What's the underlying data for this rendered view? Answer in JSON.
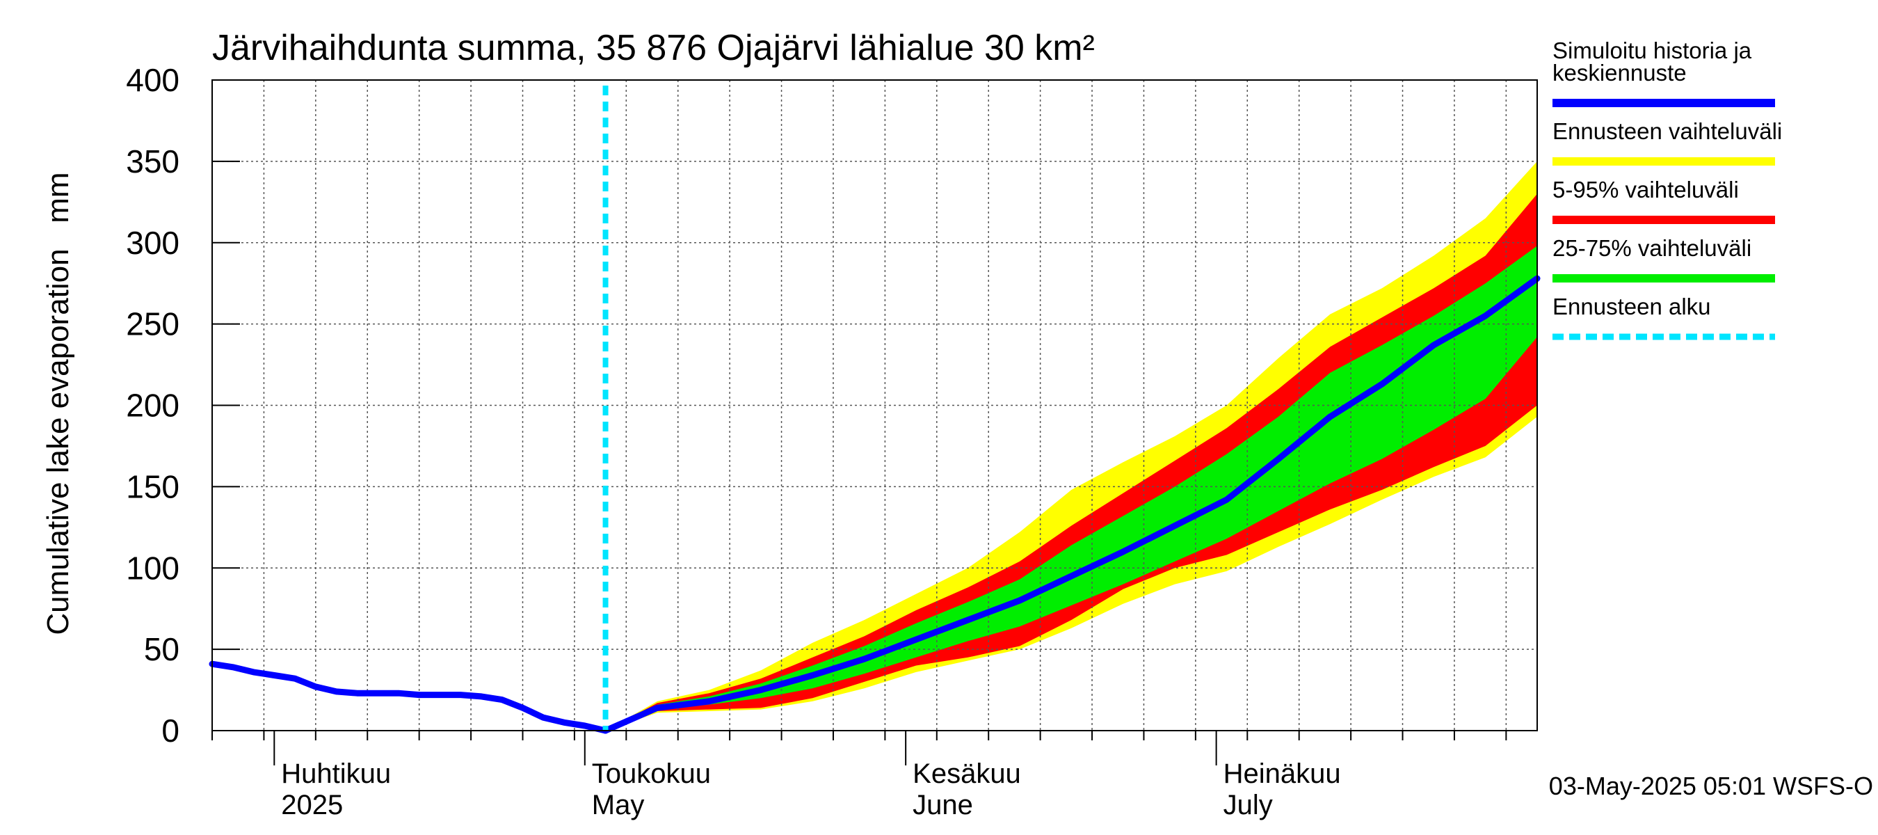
{
  "chart_data": {
    "type": "area",
    "title": "Järvihaihdunta summa, 35 876 Ojajärvi lähialue 30 km²",
    "ylabel": "Cumulative lake evaporation   mm",
    "ylim": [
      0,
      400
    ],
    "yticks": [
      0,
      50,
      100,
      150,
      200,
      250,
      300,
      350,
      400
    ],
    "xlim": [
      "2025-03-26",
      "2025-08-01"
    ],
    "x_tick_dates": [
      "2025-03-26",
      "2025-03-31",
      "2025-04-05",
      "2025-04-10",
      "2025-04-15",
      "2025-04-20",
      "2025-04-25",
      "2025-04-30",
      "2025-05-05",
      "2025-05-10",
      "2025-05-15",
      "2025-05-20",
      "2025-05-25",
      "2025-05-30",
      "2025-06-04",
      "2025-06-09",
      "2025-06-14",
      "2025-06-19",
      "2025-06-24",
      "2025-06-29",
      "2025-07-04",
      "2025-07-09",
      "2025-07-14",
      "2025-07-19",
      "2025-07-24",
      "2025-07-29"
    ],
    "month_starts": [
      "2025-04-01",
      "2025-05-01",
      "2025-06-01",
      "2025-07-01"
    ],
    "month_labels": [
      {
        "date": "2025-04-01",
        "fi": "Huhtikuu",
        "en": "2025"
      },
      {
        "date": "2025-05-01",
        "fi": "Toukokuu",
        "en": "May"
      },
      {
        "date": "2025-06-01",
        "fi": "Kesäkuu",
        "en": "June"
      },
      {
        "date": "2025-07-01",
        "fi": "Heinäkuu",
        "en": "July"
      }
    ],
    "grid": true,
    "forecast_start": "2025-05-03",
    "history": {
      "name": "Simuloitu historia ja keskiennuste",
      "x": [
        "2025-03-26",
        "2025-03-28",
        "2025-03-30",
        "2025-04-01",
        "2025-04-03",
        "2025-04-05",
        "2025-04-07",
        "2025-04-09",
        "2025-04-11",
        "2025-04-13",
        "2025-04-15",
        "2025-04-17",
        "2025-04-19",
        "2025-04-21",
        "2025-04-23",
        "2025-04-25",
        "2025-04-27",
        "2025-04-29",
        "2025-05-01",
        "2025-05-03"
      ],
      "values": [
        41,
        39,
        36,
        34,
        32,
        27,
        24,
        23,
        23,
        23,
        22,
        22,
        22,
        21,
        19,
        14,
        8,
        5,
        3,
        0
      ]
    },
    "forecast": {
      "x": [
        "2025-05-03",
        "2025-05-08",
        "2025-05-13",
        "2025-05-18",
        "2025-05-23",
        "2025-05-28",
        "2025-06-02",
        "2025-06-07",
        "2025-06-12",
        "2025-06-17",
        "2025-06-22",
        "2025-06-27",
        "2025-07-02",
        "2025-07-07",
        "2025-07-12",
        "2025-07-17",
        "2025-07-22",
        "2025-07-27",
        "2025-08-01"
      ],
      "median": [
        0,
        14,
        18,
        25,
        34,
        44,
        56,
        68,
        80,
        95,
        110,
        126,
        142,
        167,
        193,
        213,
        237,
        255,
        278
      ],
      "p25": [
        0,
        13,
        16,
        20,
        26,
        35,
        45,
        55,
        64,
        77,
        90,
        104,
        118,
        135,
        152,
        167,
        185,
        204,
        242
      ],
      "p75": [
        0,
        16,
        21,
        29,
        40,
        52,
        66,
        79,
        93,
        114,
        132,
        150,
        170,
        193,
        220,
        237,
        255,
        275,
        298
      ],
      "p5": [
        0,
        12,
        13,
        14,
        20,
        30,
        40,
        45,
        52,
        68,
        87,
        100,
        108,
        122,
        136,
        148,
        162,
        175,
        200
      ],
      "p95": [
        0,
        17,
        23,
        32,
        45,
        58,
        74,
        88,
        104,
        126,
        146,
        166,
        186,
        210,
        236,
        254,
        272,
        292,
        330
      ],
      "min": [
        0,
        11,
        12,
        13,
        18,
        26,
        36,
        43,
        50,
        63,
        78,
        90,
        98,
        113,
        127,
        142,
        156,
        168,
        193
      ],
      "max": [
        0,
        18,
        25,
        37,
        54,
        68,
        84,
        100,
        122,
        148,
        165,
        181,
        200,
        229,
        256,
        272,
        292,
        315,
        350
      ]
    }
  },
  "legend": {
    "items": [
      {
        "label": "Simuloitu historia ja keskiennuste",
        "lines": [
          "Simuloitu historia ja",
          "keskiennuste"
        ],
        "color": "#0000ff",
        "style": "solid"
      },
      {
        "label": "Ennusteen vaihteluväli",
        "lines": [
          "Ennusteen vaihteluväli"
        ],
        "color": "#ffff00",
        "style": "solid"
      },
      {
        "label": "5-95% vaihteluväli",
        "lines": [
          "5-95% vaihteluväli"
        ],
        "color": "#ff0000",
        "style": "solid"
      },
      {
        "label": "25-75% vaihteluväli",
        "lines": [
          "25-75% vaihteluväli"
        ],
        "color": "#00ee00",
        "style": "solid"
      },
      {
        "label": "Ennusteen alku",
        "lines": [
          "Ennusteen alku"
        ],
        "color": "#00e5ff",
        "style": "dashed"
      }
    ]
  },
  "footer": {
    "timestamp": "03-May-2025 05:01 WSFS-O"
  }
}
